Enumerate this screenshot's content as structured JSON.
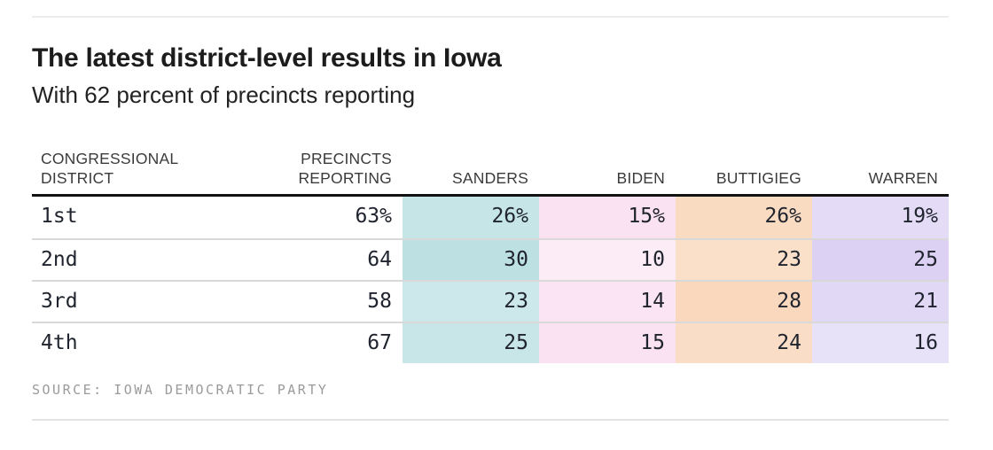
{
  "chart_data": {
    "type": "table",
    "title": "The latest district-level results in Iowa",
    "subtitle": "With 62 percent of precincts reporting",
    "header": {
      "district_line1": "CONGRESSIONAL",
      "district_line2": "DISTRICT",
      "precincts_line1": "PRECINCTS",
      "precincts_line2": "REPORTING"
    },
    "candidates": [
      {
        "name": "SANDERS",
        "color": "#7fc5c9"
      },
      {
        "name": "BIDEN",
        "color": "#f08fcd"
      },
      {
        "name": "BUTTIGIEG",
        "color": "#f2ae76"
      },
      {
        "name": "WARREN",
        "color": "#ad94e4"
      }
    ],
    "cell_shade_divisor": 58,
    "rows": [
      {
        "district": "1st",
        "precincts": {
          "text": "63%",
          "value": 63
        },
        "results": [
          {
            "text": "26%",
            "value": 26
          },
          {
            "text": "15%",
            "value": 15
          },
          {
            "text": "26%",
            "value": 26
          },
          {
            "text": "19%",
            "value": 19
          }
        ]
      },
      {
        "district": "2nd",
        "precincts": {
          "text": "64",
          "value": 64
        },
        "results": [
          {
            "text": "30",
            "value": 30
          },
          {
            "text": "10",
            "value": 10
          },
          {
            "text": "23",
            "value": 23
          },
          {
            "text": "25",
            "value": 25
          }
        ]
      },
      {
        "district": "3rd",
        "precincts": {
          "text": "58",
          "value": 58
        },
        "results": [
          {
            "text": "23",
            "value": 23
          },
          {
            "text": "14",
            "value": 14
          },
          {
            "text": "28",
            "value": 28
          },
          {
            "text": "21",
            "value": 21
          }
        ]
      },
      {
        "district": "4th",
        "precincts": {
          "text": "67",
          "value": 67
        },
        "results": [
          {
            "text": "25",
            "value": 25
          },
          {
            "text": "15",
            "value": 15
          },
          {
            "text": "24",
            "value": 24
          },
          {
            "text": "16",
            "value": 16
          }
        ]
      }
    ],
    "source": "SOURCE: IOWA DEMOCRATIC PARTY"
  },
  "colors": {
    "top_rule": "#ececec",
    "bottom_rule": "#e4e4e4",
    "header_underline": "#121212",
    "row_divider": "#d9d9d9",
    "title_text": "#1c1c1c",
    "header_text": "#3b3b3b",
    "number_text": "#20242e",
    "source_text": "#9b9b9b"
  }
}
